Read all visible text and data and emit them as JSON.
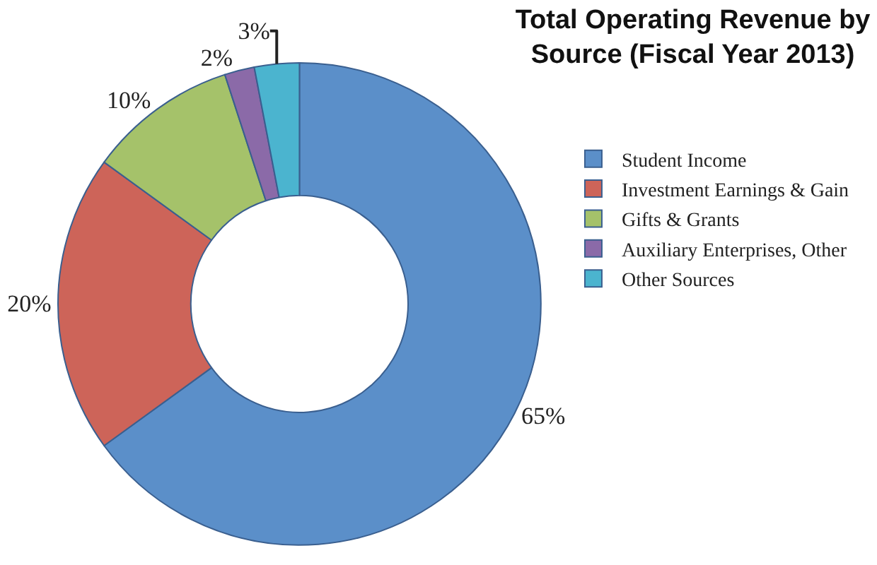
{
  "chart_data": {
    "type": "donut",
    "title": "Total Operating Revenue by Source (Fiscal Year 2013)",
    "categories": [
      "Student Income",
      "Investment Earnings & Gain",
      "Gifts & Grants",
      "Auxiliary Enterprises, Other",
      "Other Sources"
    ],
    "values": [
      65,
      20,
      10,
      2,
      3
    ],
    "colors": [
      "#5b8fc9",
      "#cd6459",
      "#a5c26a",
      "#8b6aa8",
      "#4bb4cf"
    ],
    "value_labels": [
      "65%",
      "20%",
      "10%",
      "2%",
      "3%"
    ],
    "legend": "right"
  }
}
